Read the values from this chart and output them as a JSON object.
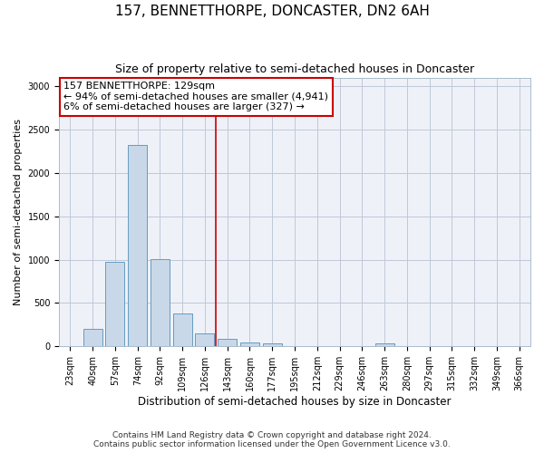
{
  "title": "157, BENNETTHORPE, DONCASTER, DN2 6AH",
  "subtitle": "Size of property relative to semi-detached houses in Doncaster",
  "xlabel": "Distribution of semi-detached houses by size in Doncaster",
  "ylabel": "Number of semi-detached properties",
  "categories": [
    "23sqm",
    "40sqm",
    "57sqm",
    "74sqm",
    "92sqm",
    "109sqm",
    "126sqm",
    "143sqm",
    "160sqm",
    "177sqm",
    "195sqm",
    "212sqm",
    "229sqm",
    "246sqm",
    "263sqm",
    "280sqm",
    "297sqm",
    "315sqm",
    "332sqm",
    "349sqm",
    "366sqm"
  ],
  "values": [
    5,
    200,
    970,
    2320,
    1010,
    380,
    155,
    90,
    50,
    30,
    5,
    2,
    2,
    2,
    35,
    2,
    2,
    2,
    2,
    2,
    2
  ],
  "bar_color": "#c8d8e8",
  "bar_edge_color": "#5590bb",
  "grid_color": "#c0c8d8",
  "bg_color": "#eef2f8",
  "annotation_box_color": "#cc0000",
  "vline_color": "#cc0000",
  "vline_x": 6.5,
  "annotation_text": "157 BENNETTHORPE: 129sqm\n← 94% of semi-detached houses are smaller (4,941)\n6% of semi-detached houses are larger (327) →",
  "footer": "Contains HM Land Registry data © Crown copyright and database right 2024.\nContains public sector information licensed under the Open Government Licence v3.0.",
  "ylim": [
    0,
    3100
  ],
  "yticks": [
    0,
    500,
    1000,
    1500,
    2000,
    2500,
    3000
  ],
  "title_fontsize": 11,
  "subtitle_fontsize": 9,
  "xlabel_fontsize": 8.5,
  "ylabel_fontsize": 8,
  "tick_fontsize": 7,
  "footer_fontsize": 6.5,
  "annotation_fontsize": 8
}
